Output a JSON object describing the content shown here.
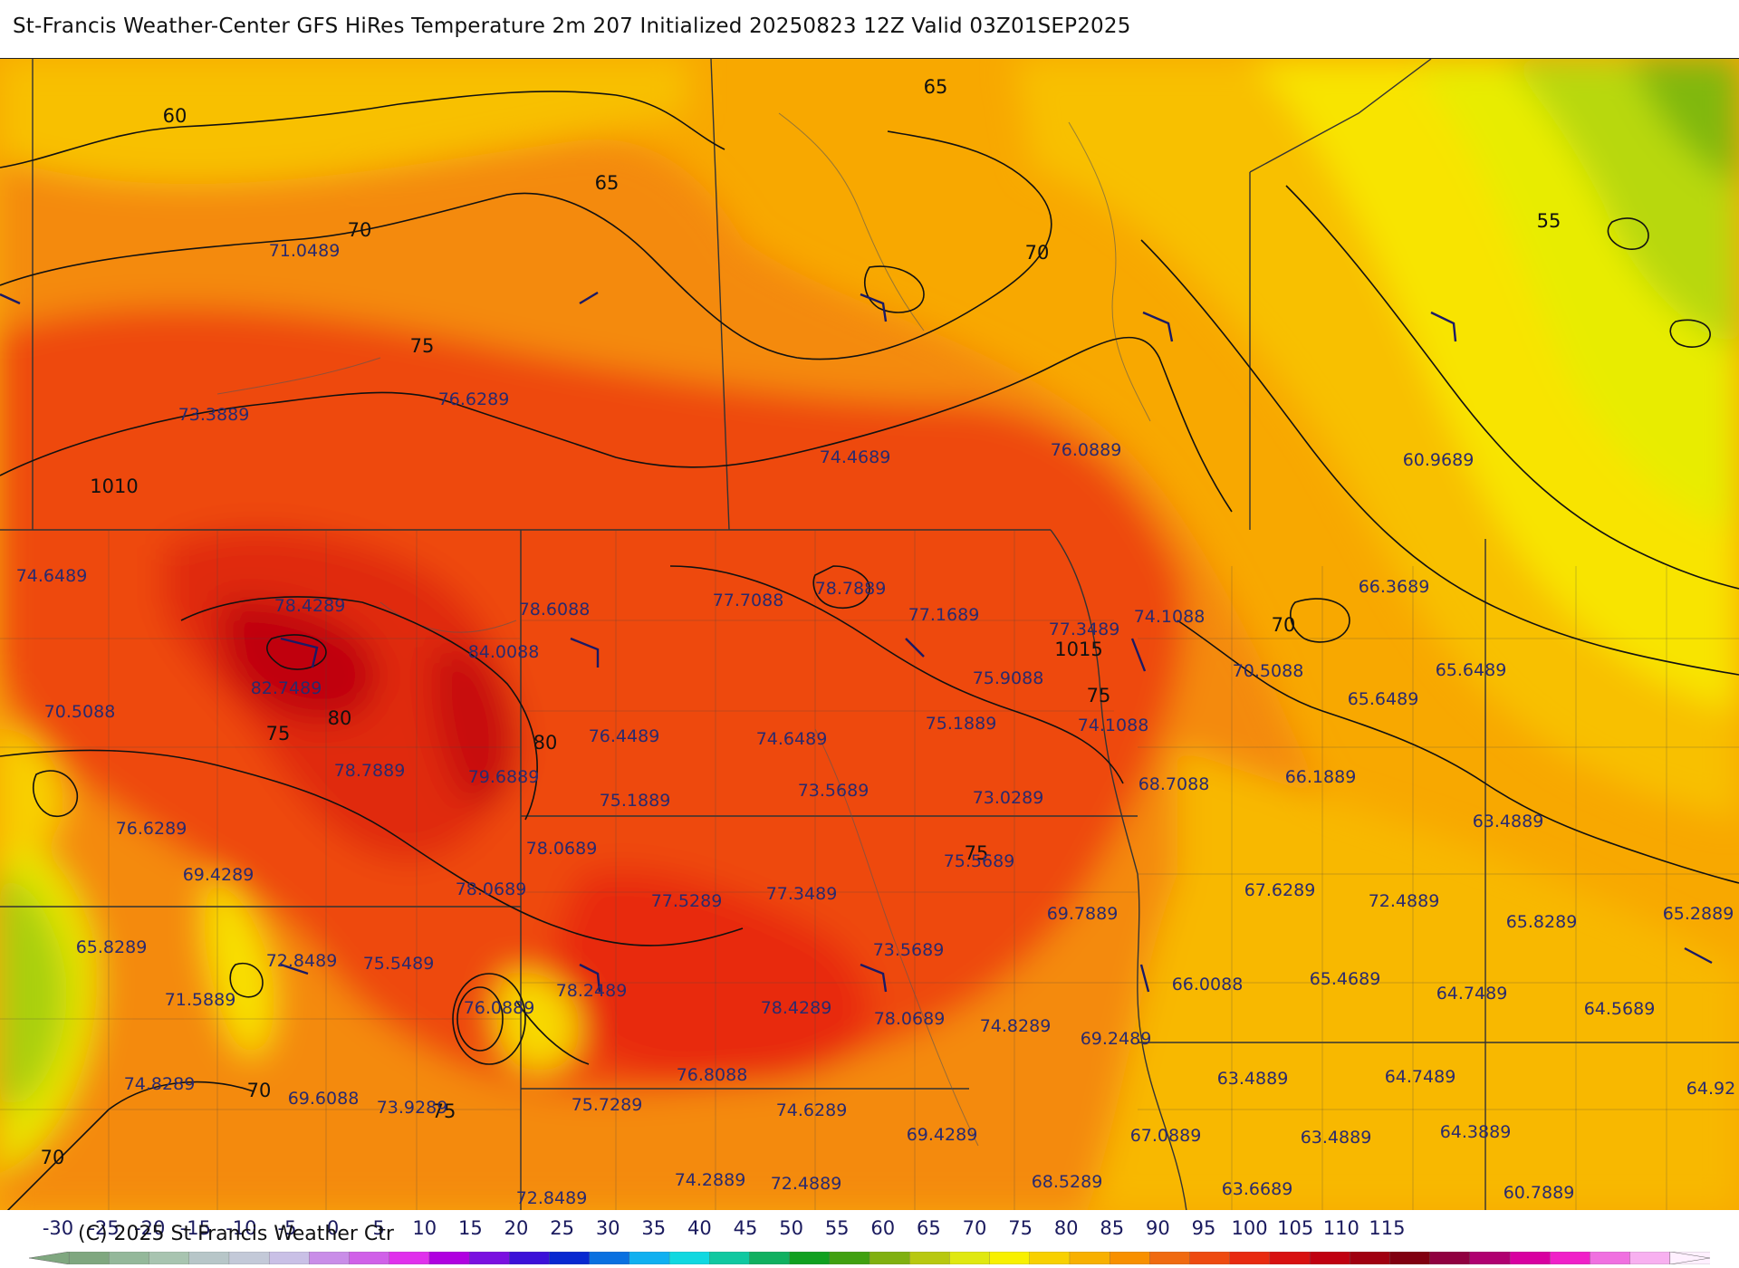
{
  "title": "St-Francis Weather-Center GFS HiRes Temperature 2m  207 Initialized 20250823 12Z Valid 03Z01SEP2025",
  "copyright": "(C) 2025 St Francis Weather Ctr",
  "colorbar": {
    "ticks": [
      "-30",
      "-25",
      "-20",
      "-15",
      "-10",
      "-5",
      "0",
      "5",
      "10",
      "15",
      "20",
      "25",
      "30",
      "35",
      "40",
      "45",
      "50",
      "55",
      "60",
      "65",
      "70",
      "75",
      "80",
      "85",
      "90",
      "95",
      "100",
      "105",
      "110",
      "115"
    ],
    "colors": [
      "#7fa77f",
      "#94b89a",
      "#a8c4b0",
      "#b7c6c8",
      "#c3c9d8",
      "#c9c0e6",
      "#c98de8",
      "#d060e8",
      "#e030ec",
      "#b000e0",
      "#7a10e0",
      "#3c10d8",
      "#0828d0",
      "#0a70e0",
      "#10b0f0",
      "#10d8e0",
      "#10c8a0",
      "#10b060",
      "#10a020",
      "#40a010",
      "#80b010",
      "#b8c810",
      "#e0e810",
      "#f8f000",
      "#f8d000",
      "#f8b000",
      "#f89000",
      "#f06a10",
      "#ee4a10",
      "#e82a10",
      "#d81010",
      "#c00010",
      "#a00010",
      "#800010",
      "#900040",
      "#b00070",
      "#d800a0",
      "#f020c8",
      "#f070e0",
      "#f8b0f0",
      "#fff0ff"
    ]
  },
  "contour_labels": [
    "60",
    "65",
    "65",
    "70",
    "70",
    "55",
    "75",
    "1010",
    "70",
    "80",
    "75",
    "80",
    "75",
    "1015",
    "75",
    "75",
    "70",
    "70"
  ],
  "stations": [
    "71.0489",
    "73.3889",
    "76.6289",
    "74.4689",
    "76.0889",
    "60.9689",
    "74.6489",
    "78.4289",
    "78.6088",
    "77.7088",
    "78.7889",
    "77.1689",
    "77.3489",
    "74.1088",
    "70.5088",
    "66.3689",
    "65.6489",
    "82.7489",
    "84.0088",
    "75.9088",
    "65.6489",
    "70.5088",
    "76.4489",
    "74.6489",
    "75.1889",
    "74.1088",
    "78.7889",
    "79.6889",
    "75.1889",
    "73.5689",
    "73.0289",
    "68.7088",
    "66.1889",
    "76.6289",
    "63.4889",
    "78.0689",
    "75.5689",
    "69.4289",
    "78.0689",
    "77.5289",
    "77.3489",
    "69.7889",
    "67.6289",
    "72.4889",
    "65.8289",
    "65.2889",
    "65.8289",
    "73.5689",
    "72.8489",
    "75.5489",
    "78.2489",
    "66.0088",
    "65.4689",
    "71.5889",
    "76.0889",
    "78.4289",
    "78.0689",
    "74.8289",
    "64.7489",
    "64.5689",
    "69.2489",
    "76.8088",
    "63.4889",
    "64.7489",
    "74.8289",
    "69.6088",
    "73.9289",
    "75.7289",
    "74.6289",
    "69.4289",
    "67.0889",
    "63.4889",
    "64.3889",
    "64.92",
    "68.5289",
    "74.2889",
    "72.4889",
    "72.8489",
    "63.6689",
    "60.7889"
  ]
}
